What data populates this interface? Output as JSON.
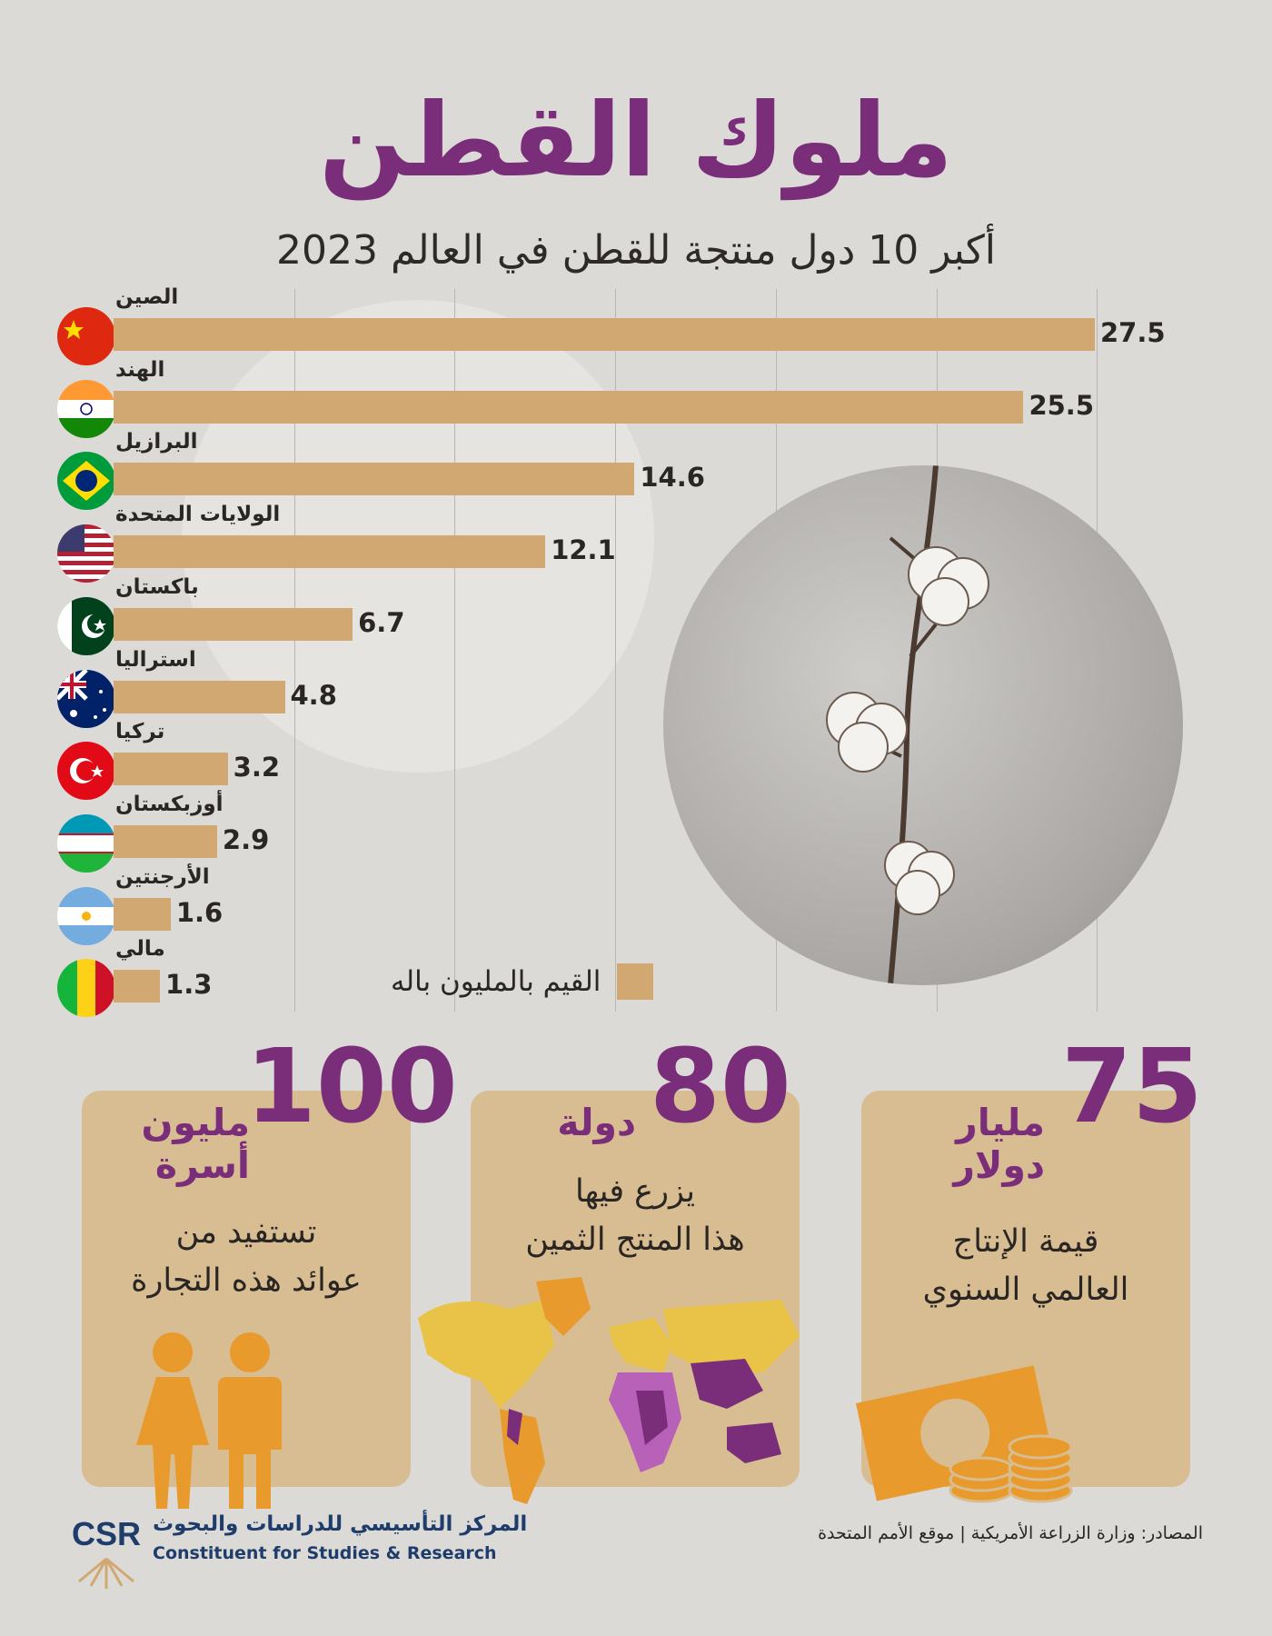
{
  "title": "ملوك القطن",
  "subtitle": "أكبر 10 دول منتجة للقطن في العالم 2023",
  "chart_data": {
    "type": "bar",
    "orientation": "horizontal",
    "title": "أكبر 10 دول منتجة للقطن في العالم 2023",
    "categories": [
      "الصين",
      "الهند",
      "البرازيل",
      "الولايات المتحدة",
      "باكستان",
      "استراليا",
      "تركيا",
      "أوزبكستان",
      "الأرجنتين",
      "مالي"
    ],
    "values": [
      27.5,
      25.5,
      14.6,
      12.1,
      6.7,
      4.8,
      3.2,
      2.9,
      1.6,
      1.3
    ],
    "value_labels": [
      "27.5",
      "25.5",
      "14.6",
      "12.1",
      "6.7",
      "4.8",
      "3.2",
      "2.9",
      "1.6",
      "1.3"
    ],
    "xlim": [
      0,
      30
    ],
    "grid": true,
    "legend_label": "القيم بالمليون باله",
    "bar_color": "#d2a872",
    "flags": [
      "china-flag-icon",
      "india-flag-icon",
      "brazil-flag-icon",
      "usa-flag-icon",
      "pakistan-flag-icon",
      "australia-flag-icon",
      "turkey-flag-icon",
      "uzbekistan-flag-icon",
      "argentina-flag-icon",
      "mali-flag-icon"
    ]
  },
  "stats": [
    {
      "number": "100",
      "unit_line1": "مليون",
      "unit_line2": "أسرة",
      "desc_line1": "تستفيد من",
      "desc_line2": "عوائد هذه التجارة",
      "icon": "people-icon"
    },
    {
      "number": "80",
      "unit_line1": "دولة",
      "unit_line2": "",
      "desc_line1": "يزرع فيها",
      "desc_line2": "هذا المنتج الثمين",
      "icon": "world-map-icon"
    },
    {
      "number": "75",
      "unit_line1": "مليار",
      "unit_line2": "دولار",
      "desc_line1": "قيمة الإنتاج",
      "desc_line2": "العالمي السنوي",
      "icon": "money-icon"
    }
  ],
  "footer": {
    "source": "المصادر: وزارة الزراعة الأمريكية | موقع الأمم المتحدة",
    "logo_abbr": "CSR",
    "logo_ar": "المركز التأسيسي للدراسات والبحوث",
    "logo_en": "Constituent for Studies & Research"
  },
  "colors": {
    "accent": "#7a2e7a",
    "bar": "#d2a872",
    "card": "#d8bd93",
    "orange": "#e89a2c",
    "background": "#dcdad7"
  }
}
